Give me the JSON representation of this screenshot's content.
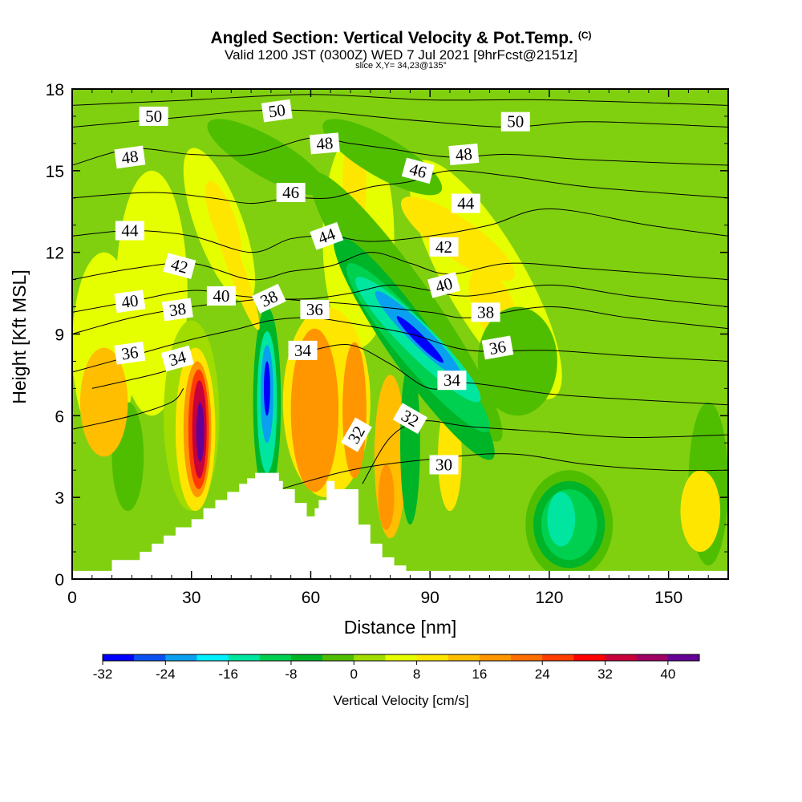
{
  "header": {
    "title": "Angled Section: Vertical Velocity & Pot.Temp.",
    "title_mark": "(C)",
    "valid_line": "Valid 1200 JST (0300Z) WED 7 Jul 2021 [9hrFcst@2151z]",
    "slice_line": "slice X,Y= 34,23@135°"
  },
  "chart_data": {
    "type": "heatmap",
    "title": "Angled Section: Vertical Velocity & Pot.Temp.",
    "xlabel": "Distance [nm]",
    "ylabel": "Height [Kft MSL]",
    "xlim": [
      0,
      165
    ],
    "ylim": [
      0,
      18
    ],
    "xticks": [
      0,
      30,
      60,
      90,
      120,
      150
    ],
    "yticks": [
      0,
      3,
      6,
      9,
      12,
      15,
      18
    ],
    "grid": false,
    "background_color": "#80d010",
    "colorbar": {
      "title": "Vertical Velocity [cm/s]",
      "min": -32,
      "max": 44,
      "step": 4,
      "tick_labels": [
        -32,
        -24,
        -16,
        -8,
        0,
        8,
        16,
        24,
        32,
        40
      ],
      "colors": [
        "#0000ff",
        "#0a50f0",
        "#0aa0f0",
        "#00f0ff",
        "#00e6a0",
        "#00d050",
        "#00b428",
        "#50be00",
        "#a0dc00",
        "#e6ff00",
        "#ffe600",
        "#ffbe00",
        "#ff9600",
        "#ff6e00",
        "#ff3c00",
        "#ff0000",
        "#c8003c",
        "#a00064",
        "#640096"
      ]
    },
    "terrain": {
      "color": "#ffffff",
      "x": [
        0,
        10,
        10,
        17,
        17,
        20,
        20,
        23,
        23,
        26,
        26,
        30,
        30,
        33,
        33,
        36,
        36,
        39,
        39,
        42,
        42,
        44,
        44,
        46,
        46,
        48,
        48,
        52,
        52,
        53,
        53,
        56,
        56,
        59,
        59,
        61,
        61,
        62,
        62,
        64,
        64,
        66,
        66,
        72,
        72,
        75,
        75,
        78,
        78,
        81,
        81,
        84,
        84,
        88,
        88,
        165
      ],
      "y": [
        0.3,
        0.3,
        0.7,
        0.7,
        1.0,
        1.0,
        1.3,
        1.3,
        1.6,
        1.6,
        1.9,
        1.9,
        2.2,
        2.2,
        2.6,
        2.6,
        2.9,
        2.9,
        3.2,
        3.2,
        3.5,
        3.5,
        3.7,
        3.7,
        3.9,
        3.9,
        3.9,
        3.9,
        3.6,
        3.6,
        3.3,
        3.3,
        2.8,
        2.8,
        2.3,
        2.3,
        2.6,
        2.6,
        2.9,
        2.9,
        3.6,
        3.6,
        3.3,
        3.3,
        2.0,
        2.0,
        1.3,
        1.3,
        0.8,
        0.8,
        0.5,
        0.5,
        0.3,
        0.3,
        0.3,
        0.3
      ]
    },
    "velocity_blobs": [
      {
        "value": 4,
        "x": 20,
        "y": 10.5,
        "rx": 9,
        "ry": 4.5,
        "rot": 0
      },
      {
        "value": 4,
        "x": 8,
        "y": 8.5,
        "rx": 8,
        "ry": 3.5,
        "rot": 0
      },
      {
        "value": 4,
        "x": 37,
        "y": 13,
        "rx": 6,
        "ry": 3,
        "rot": -20
      },
      {
        "value": 8,
        "x": 38,
        "y": 13.2,
        "rx": 3,
        "ry": 1.5,
        "rot": -20
      },
      {
        "value": 4,
        "x": 72,
        "y": 12.5,
        "rx": 9,
        "ry": 4,
        "rot": 0
      },
      {
        "value": 4,
        "x": 104,
        "y": 11,
        "rx": 10,
        "ry": 5,
        "rot": -30
      },
      {
        "value": 8,
        "x": 97,
        "y": 12.5,
        "rx": 5,
        "ry": 2.5,
        "rot": -55
      },
      {
        "value": 8,
        "x": 106,
        "y": 10.0,
        "rx": 5,
        "ry": 1.5,
        "rot": -25
      },
      {
        "value": 8,
        "x": 71,
        "y": 14.5,
        "rx": 3,
        "ry": 2,
        "rot": 0
      },
      {
        "value": -4,
        "x": 78,
        "y": 15.5,
        "rx": 5,
        "ry": 2.5,
        "rot": -60
      },
      {
        "value": -4,
        "x": 49,
        "y": 15.5,
        "rx": 5,
        "ry": 2.5,
        "rot": -60
      },
      {
        "value": -4,
        "x": 112,
        "y": 8.0,
        "rx": 10,
        "ry": 2,
        "rot": 0
      },
      {
        "value": -4,
        "x": 160,
        "y": 3.5,
        "rx": 5,
        "ry": 3,
        "rot": 0
      },
      {
        "value": -4,
        "x": 14,
        "y": 4.5,
        "rx": 4,
        "ry": 2,
        "rot": 0
      },
      {
        "value": -4,
        "x": 125,
        "y": 2.0,
        "rx": 11,
        "ry": 2,
        "rot": 0
      },
      {
        "value": -8,
        "x": 125,
        "y": 2.0,
        "rx": 9,
        "ry": 1.6,
        "rot": 0
      },
      {
        "value": -12,
        "x": 125,
        "y": 2.0,
        "rx": 7,
        "ry": 1.3,
        "rot": 0
      },
      {
        "value": -16,
        "x": 123,
        "y": 2.2,
        "rx": 3.5,
        "ry": 1.0,
        "rot": 0
      },
      {
        "value": 12,
        "x": 8,
        "y": 6.5,
        "rx": 6,
        "ry": 2,
        "rot": 0
      },
      {
        "value": 8,
        "x": 158,
        "y": 2.5,
        "rx": 5,
        "ry": 1.5,
        "rot": 0
      },
      {
        "value": 8,
        "x": 95,
        "y": 4.5,
        "rx": 3,
        "ry": 2,
        "rot": 0
      },
      {
        "value": 12,
        "x": 80,
        "y": 4.5,
        "rx": 4,
        "ry": 3,
        "rot": 0
      },
      {
        "value": 16,
        "x": 79,
        "y": 3.0,
        "rx": 2,
        "ry": 1.2,
        "rot": 0
      },
      {
        "value": -8,
        "x": 85,
        "y": 5.0,
        "rx": 2.5,
        "ry": 3,
        "rot": 0
      },
      {
        "value": 0,
        "x": 30,
        "y": 6.0,
        "rx": 7,
        "ry": 3.5,
        "rot": 0
      },
      {
        "value": 8,
        "x": 31,
        "y": 5.5,
        "rx": 5,
        "ry": 3,
        "rot": 0
      },
      {
        "value": 16,
        "x": 31.5,
        "y": 5.5,
        "rx": 3.5,
        "ry": 2.5,
        "rot": 0
      },
      {
        "value": 24,
        "x": 31.8,
        "y": 5.5,
        "rx": 2.6,
        "ry": 2.2,
        "rot": 0
      },
      {
        "value": 32,
        "x": 32,
        "y": 5.5,
        "rx": 1.8,
        "ry": 1.8,
        "rot": 0
      },
      {
        "value": 40,
        "x": 32.2,
        "y": 5.4,
        "rx": 1.0,
        "ry": 1.1,
        "rot": 0
      },
      {
        "value": -8,
        "x": 49,
        "y": 6.5,
        "rx": 3.5,
        "ry": 3.5,
        "rot": 0
      },
      {
        "value": -16,
        "x": 49,
        "y": 6.5,
        "rx": 2.5,
        "ry": 2.6,
        "rot": 0
      },
      {
        "value": -24,
        "x": 49,
        "y": 6.8,
        "rx": 1.6,
        "ry": 1.8,
        "rot": 0
      },
      {
        "value": -32,
        "x": 49,
        "y": 7.0,
        "rx": 0.8,
        "ry": 1.0,
        "rot": 0
      },
      {
        "value": 8,
        "x": 64,
        "y": 6.5,
        "rx": 11,
        "ry": 3.5,
        "rot": 0
      },
      {
        "value": 16,
        "x": 61,
        "y": 6.2,
        "rx": 6,
        "ry": 3,
        "rot": 0
      },
      {
        "value": 16,
        "x": 71,
        "y": 6.2,
        "rx": 3,
        "ry": 2.5,
        "rot": 0
      },
      {
        "value": 8,
        "x": 41,
        "y": 11.5,
        "rx": 2,
        "ry": 2.5,
        "rot": -20
      },
      {
        "value": -4,
        "x": 84,
        "y": 10.0,
        "rx": 7,
        "ry": 6,
        "rot": -35
      },
      {
        "value": -8,
        "x": 86,
        "y": 8.5,
        "rx": 6,
        "ry": 5,
        "rot": -35
      },
      {
        "value": -12,
        "x": 87,
        "y": 8.5,
        "rx": 5,
        "ry": 4,
        "rot": -40
      },
      {
        "value": -16,
        "x": 87,
        "y": 8.8,
        "rx": 4,
        "ry": 3.2,
        "rot": -45
      },
      {
        "value": -24,
        "x": 87,
        "y": 9.0,
        "rx": 2.5,
        "ry": 2.2,
        "rot": -45
      },
      {
        "value": -32,
        "x": 87.5,
        "y": 8.8,
        "rx": 1.2,
        "ry": 1.2,
        "rot": -45
      }
    ],
    "theta_contours": [
      {
        "level": 30,
        "labeled": true,
        "x": [
          50,
          70,
          90,
          110,
          130,
          150,
          165
        ],
        "y": [
          3.2,
          4.0,
          4.4,
          4.6,
          4.2,
          4.0,
          4.0
        ]
      },
      {
        "level": 32,
        "labeled": true,
        "x": [
          73,
          80,
          88,
          100,
          120,
          140,
          165
        ],
        "y": [
          3.5,
          5.2,
          5.8,
          5.6,
          5.4,
          5.2,
          5.3
        ]
      },
      {
        "level": 33,
        "labeled": false,
        "x": [
          0,
          15,
          25,
          28
        ],
        "y": [
          5.5,
          6.0,
          6.5,
          7.0
        ]
      },
      {
        "level": 34,
        "labeled": true,
        "x": [
          5,
          20,
          27,
          30
        ],
        "y": [
          7.0,
          7.5,
          7.8,
          8.0
        ]
      },
      {
        "level": 34,
        "labeled": true,
        "x": [
          55,
          60,
          70,
          80,
          90,
          100,
          120,
          140,
          165
        ],
        "y": [
          8.3,
          8.4,
          8.6,
          7.9,
          7.0,
          7.2,
          6.8,
          6.6,
          6.4
        ]
      },
      {
        "level": 36,
        "labeled": true,
        "x": [
          0,
          15,
          30,
          42,
          50,
          60,
          70,
          85,
          100,
          120,
          140,
          165
        ],
        "y": [
          7.6,
          8.2,
          8.8,
          9.2,
          9.5,
          9.6,
          9.4,
          9.0,
          8.4,
          8.4,
          8.2,
          8.0
        ]
      },
      {
        "level": 38,
        "labeled": true,
        "x": [
          0,
          15,
          30,
          42,
          50,
          60,
          70,
          90,
          100,
          120,
          140,
          165
        ],
        "y": [
          9.0,
          9.6,
          10.0,
          10.2,
          10.3,
          10.2,
          10.1,
          9.8,
          9.6,
          10.0,
          9.6,
          9.2
        ]
      },
      {
        "level": 40,
        "labeled": true,
        "x": [
          0,
          15,
          30,
          42,
          50,
          60,
          70,
          80,
          90,
          100,
          120,
          140,
          165
        ],
        "y": [
          9.8,
          10.2,
          10.6,
          10.4,
          10.3,
          10.3,
          10.5,
          10.8,
          10.6,
          10.4,
          10.8,
          10.4,
          10.0
        ]
      },
      {
        "level": 42,
        "labeled": true,
        "x": [
          0,
          15,
          30,
          45,
          55,
          65,
          75,
          85,
          95,
          110,
          130,
          165
        ],
        "y": [
          11.0,
          11.4,
          11.6,
          11.0,
          11.3,
          11.5,
          12.0,
          11.6,
          11.2,
          11.6,
          11.4,
          11.0
        ]
      },
      {
        "level": 44,
        "labeled": true,
        "x": [
          0,
          15,
          30,
          45,
          55,
          65,
          75,
          90,
          105,
          120,
          145,
          165
        ],
        "y": [
          12.6,
          12.8,
          12.6,
          12.0,
          12.5,
          12.6,
          12.4,
          12.6,
          13.0,
          13.6,
          13.0,
          12.6
        ]
      },
      {
        "level": 46,
        "labeled": true,
        "x": [
          0,
          20,
          35,
          45,
          55,
          65,
          75,
          85,
          95,
          110,
          130,
          165
        ],
        "y": [
          14.0,
          14.2,
          14.0,
          13.8,
          14.0,
          14.0,
          14.4,
          14.6,
          15.0,
          14.8,
          14.4,
          14.0
        ]
      },
      {
        "level": 48,
        "labeled": true,
        "x": [
          0,
          15,
          30,
          45,
          60,
          70,
          80,
          95,
          110,
          130,
          165
        ],
        "y": [
          15.2,
          15.8,
          15.6,
          15.6,
          16.2,
          16.0,
          15.8,
          15.5,
          15.6,
          15.4,
          15.2
        ]
      },
      {
        "level": 50,
        "labeled": true,
        "x": [
          0,
          15,
          30,
          45,
          60,
          75,
          90,
          110,
          130,
          165
        ],
        "y": [
          16.6,
          16.8,
          17.0,
          17.2,
          17.2,
          17.0,
          16.8,
          16.6,
          16.8,
          16.6
        ]
      },
      {
        "level": 51,
        "labeled": false,
        "x": [
          0,
          30,
          60,
          90,
          120,
          165
        ],
        "y": [
          17.4,
          17.6,
          17.8,
          17.6,
          17.6,
          17.4
        ]
      }
    ],
    "contour_labels": [
      {
        "text": "50",
        "x": 20.5,
        "y": 17.0,
        "rot": 0
      },
      {
        "text": "48",
        "x": 14.5,
        "y": 15.5,
        "rot": -8
      },
      {
        "text": "44",
        "x": 14.5,
        "y": 12.8,
        "rot": 0
      },
      {
        "text": "42",
        "x": 27.0,
        "y": 11.5,
        "rot": 15
      },
      {
        "text": "40",
        "x": 14.5,
        "y": 10.2,
        "rot": -8
      },
      {
        "text": "38",
        "x": 26.5,
        "y": 9.9,
        "rot": -8
      },
      {
        "text": "36",
        "x": 14.5,
        "y": 8.3,
        "rot": -8
      },
      {
        "text": "34",
        "x": 26.5,
        "y": 8.1,
        "rot": -15
      },
      {
        "text": "40",
        "x": 37.5,
        "y": 10.4,
        "rot": 0
      },
      {
        "text": "38",
        "x": 49.5,
        "y": 10.3,
        "rot": -25
      },
      {
        "text": "36",
        "x": 61.0,
        "y": 9.9,
        "rot": 0
      },
      {
        "text": "34",
        "x": 58.0,
        "y": 8.4,
        "rot": 0
      },
      {
        "text": "50",
        "x": 51.5,
        "y": 17.2,
        "rot": -8
      },
      {
        "text": "48",
        "x": 63.5,
        "y": 16.0,
        "rot": -5
      },
      {
        "text": "46",
        "x": 55.0,
        "y": 14.2,
        "rot": 0
      },
      {
        "text": "44",
        "x": 64.0,
        "y": 12.6,
        "rot": -20
      },
      {
        "text": "46",
        "x": 87.0,
        "y": 15.0,
        "rot": 15
      },
      {
        "text": "48",
        "x": 98.5,
        "y": 15.6,
        "rot": -5
      },
      {
        "text": "50",
        "x": 111.5,
        "y": 16.8,
        "rot": 0
      },
      {
        "text": "44",
        "x": 99.0,
        "y": 13.8,
        "rot": 0
      },
      {
        "text": "42",
        "x": 93.5,
        "y": 12.2,
        "rot": 0
      },
      {
        "text": "40",
        "x": 93.5,
        "y": 10.8,
        "rot": -15
      },
      {
        "text": "38",
        "x": 104.0,
        "y": 9.8,
        "rot": 0
      },
      {
        "text": "36",
        "x": 107.0,
        "y": 8.5,
        "rot": -10
      },
      {
        "text": "34",
        "x": 95.5,
        "y": 7.3,
        "rot": 0
      },
      {
        "text": "32",
        "x": 85.0,
        "y": 5.9,
        "rot": 30
      },
      {
        "text": "32",
        "x": 71.5,
        "y": 5.3,
        "rot": -60
      },
      {
        "text": "30",
        "x": 93.5,
        "y": 4.2,
        "rot": 0
      }
    ]
  }
}
